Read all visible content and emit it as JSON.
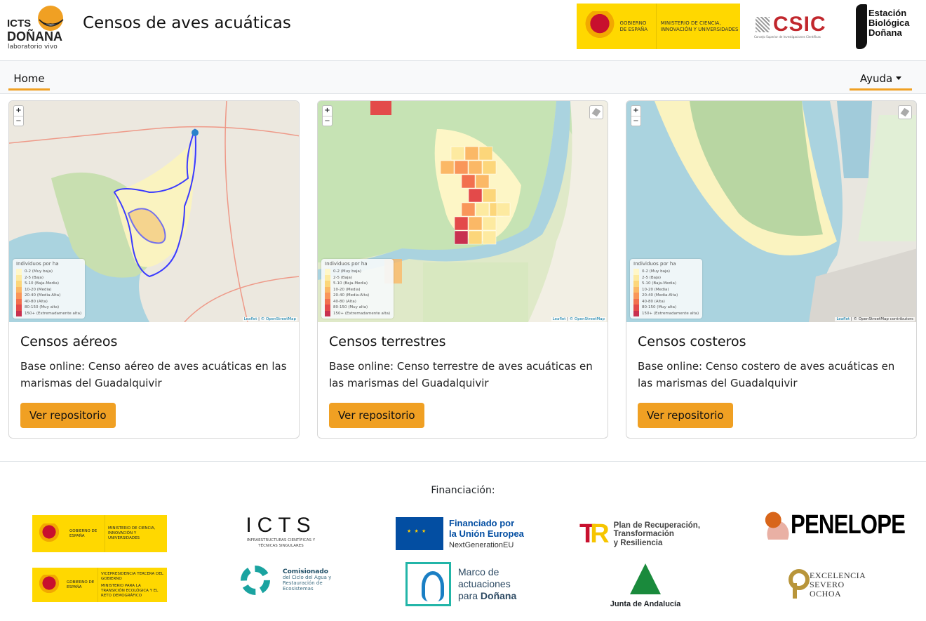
{
  "header": {
    "logo": {
      "line1": "ICTS",
      "line2": "DOÑANA",
      "line3": "laboratorio vivo"
    },
    "title": "Censos de aves acuáticas",
    "partner_logos": {
      "gobierno": {
        "left": "GOBIERNO DE ESPAÑA",
        "right": "MINISTERIO DE CIENCIA, INNOVACIÓN Y UNIVERSIDADES"
      },
      "csic": {
        "name": "CSIC",
        "subtitle": "Consejo Superior de Investigaciones Científicas"
      },
      "ebd": {
        "name": "Estación Biológica Doñana"
      }
    }
  },
  "nav": {
    "home": "Home",
    "help": "Ayuda"
  },
  "map_common": {
    "zoom_in": "+",
    "zoom_out": "−",
    "legend_title": "Individuos por ha",
    "legend": [
      {
        "label": "0-2 (Muy baja)",
        "color": "#fff7c8"
      },
      {
        "label": "2-5 (Baja)",
        "color": "#fdeaa0"
      },
      {
        "label": "5-10 (Baja-Media)",
        "color": "#fcd67a"
      },
      {
        "label": "10-20 (Media)",
        "color": "#fbb866"
      },
      {
        "label": "20-40 (Media-Alta)",
        "color": "#f9965a"
      },
      {
        "label": "40-80 (Alta)",
        "color": "#f2704f"
      },
      {
        "label": "80-150 (Muy alta)",
        "color": "#e34a4a"
      },
      {
        "label": "150+ (Extremadamente alta)",
        "color": "#c8304f"
      }
    ],
    "attribution_leaflet": "Leaflet",
    "attribution_osm": "© OpenStreetMap",
    "attribution_osm_full": "© OpenStreetMap contributors"
  },
  "cards": [
    {
      "title": "Censos aéreos",
      "text": "Base online: Censo aéreo de aves acuáticas en las marismas del Guadalquivir",
      "button": "Ver repositorio"
    },
    {
      "title": "Censos terrestres",
      "text": "Base online: Censo terrestre de aves acuáticas en las marismas del Guadalquivir",
      "button": "Ver repositorio"
    },
    {
      "title": "Censos costeros",
      "text": "Base online: Censo costero de aves acuáticas en las marismas del Guadalquivir",
      "button": "Ver repositorio"
    }
  ],
  "footer": {
    "heading": "Financiación:",
    "gob_ciencia": {
      "left": "GOBIERNO DE ESPAÑA",
      "right": "MINISTERIO DE CIENCIA, INNOVACIÓN Y UNIVERSIDADES"
    },
    "gob_transicion": {
      "left": "GOBIERNO DE ESPAÑA",
      "right1": "VICEPRESIDENCIA TERCERA DEL GOBIERNO",
      "right2": "MINISTERIO PARA LA TRANSICIÓN ECOLÓGICA Y EL RETO DEMOGRÁFICO"
    },
    "icts": {
      "name": "ICTS",
      "subtitle": "INFRAESTRUCTURAS CIENTÍFICAS Y TÉCNICAS SINGULARES"
    },
    "comisionado": {
      "title": "Comisionado",
      "subtitle": "del Ciclo del Agua y Restauración de Ecosistemas"
    },
    "eu": {
      "line1": "Financiado por",
      "line2": "la Unión Europea",
      "line3": "NextGenerationEU"
    },
    "marco": {
      "line1": "Marco de",
      "line2": "actuaciones",
      "line3a": "para ",
      "line3b": "Doñana"
    },
    "prtr": {
      "line1": "Plan de Recuperación,",
      "line2": "Transformación",
      "line3": "y Resiliencia"
    },
    "junta": {
      "name": "Junta de Andalucía"
    },
    "penelope": {
      "name": "PENELOPE"
    },
    "severo": {
      "line1": "EXCELENCIA",
      "line2": "SEVERO",
      "line3": "OCHOA"
    }
  }
}
